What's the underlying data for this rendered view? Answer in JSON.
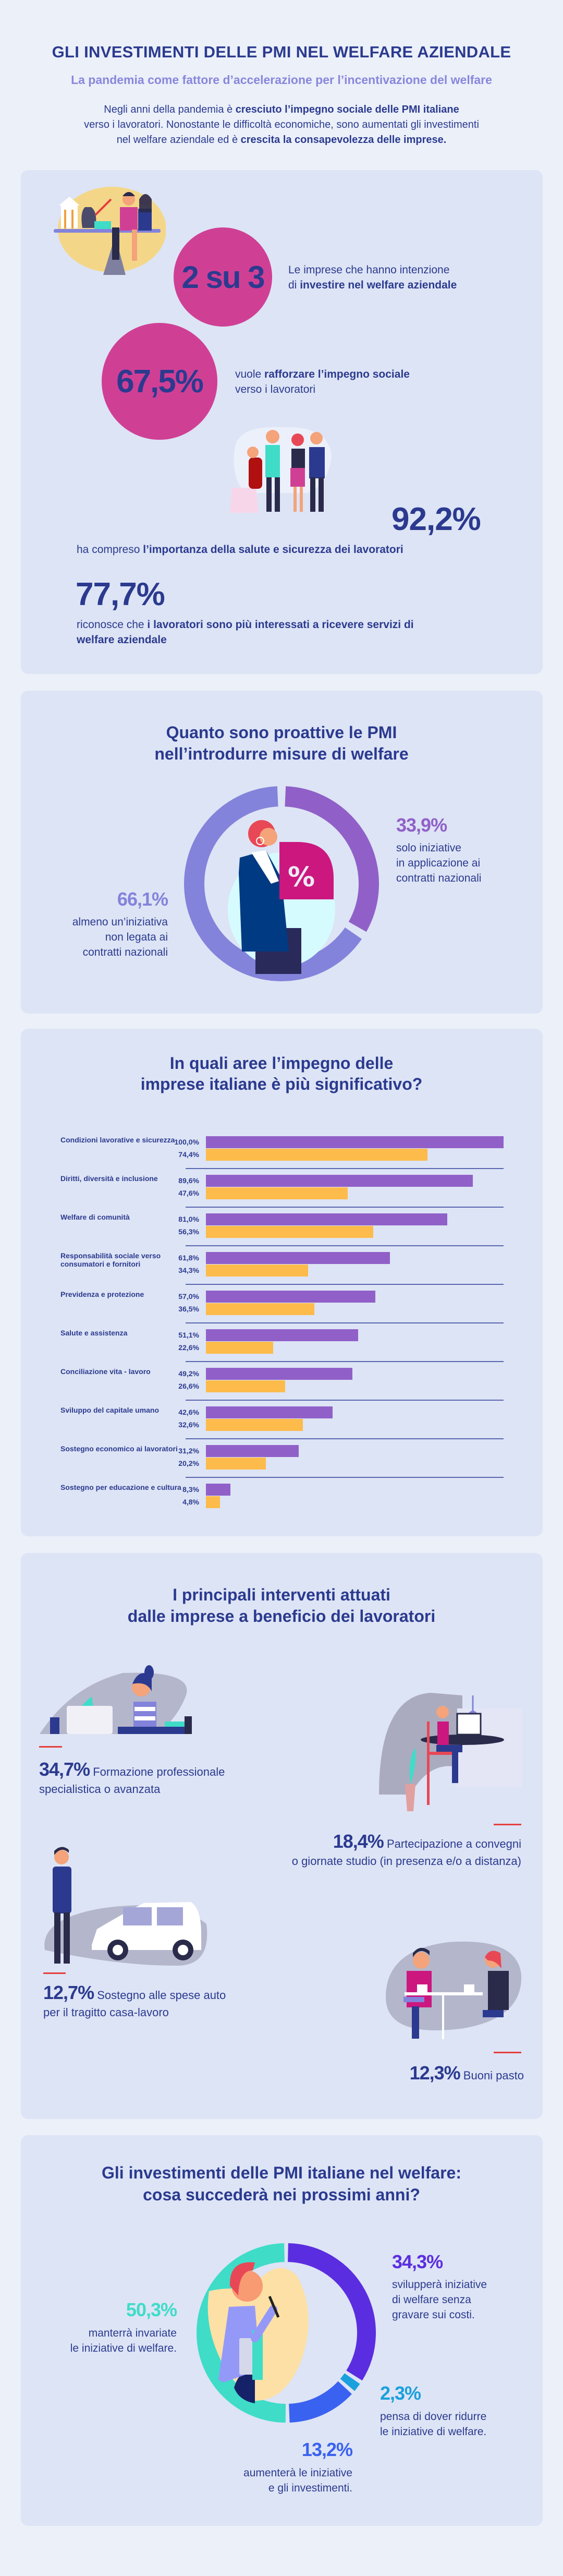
{
  "colors": {
    "background": "#ebf0f9",
    "card": "#dde4f5",
    "navy": "#2b3a8f",
    "magenta": "#cf4095",
    "subtitle": "#8a86dc",
    "accent_red": "#e53e3e"
  },
  "header": {
    "title": "GLI INVESTIMENTI DELLE PMI NEL WELFARE AZIENDALE",
    "subtitle": "La pandemia come fattore d’accelerazione per l’incentivazione del welfare",
    "intro": {
      "line1_regular": "Negli anni della pandemia è ",
      "line1_bold": "cresciuto l’impegno sociale delle PMI italiane",
      "line2": "verso i lavoratori. Nonostante le difficoltà economiche, sono aumentati gli investimenti",
      "line3_regular": "nel welfare aziendale ed è ",
      "line3_bold": "crescita la consapevolezza delle imprese."
    }
  },
  "stats": {
    "stat1": {
      "value": "2 su 3",
      "line1": "Le imprese che hanno intenzione",
      "prefix": "di ",
      "bold": "investire nel welfare aziendale"
    },
    "stat2": {
      "value": "67,5%",
      "prefix": "vuole ",
      "bold": "rafforzare l’impegno sociale",
      "line2": "verso i lavoratori"
    },
    "stat3": {
      "value": "92,2%",
      "prefix": "ha compreso ",
      "bold": "l’importanza della salute e sicurezza dei lavoratori"
    },
    "stat4": {
      "value": "77,7%",
      "prefix": "riconosce che ",
      "bold": "i lavoratori sono più interessati a ricevere servizi di welfare aziendale"
    }
  },
  "proactivity": {
    "title_line1": "Quanto sono proattive le PMI",
    "title_line2": "nell’introdurre misure di welfare",
    "right": {
      "value": "33,9%",
      "lines": [
        "solo iniziative",
        "in applicazione ai",
        "contratti nazionali"
      ]
    },
    "left": {
      "value": "66,1%",
      "lines": [
        "almeno un’iniziativa",
        "non legata ai",
        "contratti nazionali"
      ]
    },
    "center_icon": "percent-icon"
  },
  "areas": {
    "title_line1": "In quali aree l’impegno delle",
    "title_line2": "imprese italiane è più significativo?"
  },
  "interventions": {
    "title_line1": "I principali interventi attuati",
    "title_line2": "dalle imprese a beneficio dei lavoratori",
    "items": [
      {
        "value": "34,7%",
        "label": "Formazione professionale",
        "line2": "specialistica o avanzata"
      },
      {
        "value": "18,4%",
        "label": "Partecipazione a convegni",
        "line2": "o giornate studio (in presenza e/o a distanza)"
      },
      {
        "value": "12,7%",
        "label": "Sostegno alle spese auto",
        "line2": "per il tragitto casa-lavoro"
      },
      {
        "value": "12,3%",
        "label": "Buoni pasto",
        "line2": ""
      }
    ]
  },
  "future": {
    "title_line1": "Gli investimenti delle PMI italiane nel welfare:",
    "title_line2": "cosa succederà nei prossimi anni?",
    "items": [
      {
        "value": "34,3%",
        "lines": [
          "svilupperà iniziative",
          "di welfare senza",
          "gravare sui costi."
        ]
      },
      {
        "value": "2,3%",
        "lines": [
          "pensa di dover ridurre",
          "le iniziative di welfare."
        ]
      },
      {
        "value": "13,2%",
        "lines": [
          "aumenterà le iniziative",
          "e gli investimenti."
        ]
      },
      {
        "value": "50,3%",
        "lines": [
          "manterrà invariate",
          "le iniziative di welfare."
        ]
      }
    ]
  },
  "chart_data": [
    {
      "type": "pie",
      "variant": "donut",
      "values": [
        33.9,
        66.1
      ],
      "labels": [
        "33,9%",
        "66,1%"
      ],
      "colors": [
        "#9060c8",
        "#8383db"
      ],
      "start": "top",
      "direction": "clockwise"
    },
    {
      "type": "bar",
      "orientation": "horizontal",
      "categories": [
        "Condizioni lavorative e sicurezza",
        "Diritti, diversità e inclusione",
        "Welfare di comunità",
        "Responsabilità sociale verso consumatori e fornitori",
        "Previdenza e protezione",
        "Salute e assistenza",
        "Conciliazione vita - lavoro",
        "Sviluppo del capitale umano",
        "Sostegno economico ai lavoratori",
        "Sostegno per educazione e cultura"
      ],
      "series": [
        {
          "values": [
            100.0,
            89.6,
            81.0,
            61.8,
            57.0,
            51.1,
            49.2,
            42.6,
            31.2,
            8.3
          ],
          "labels": [
            "100,0%",
            "89,6%",
            "81,0%",
            "61,8%",
            "57,0%",
            "51,1%",
            "49,2%",
            "42,6%",
            "31,2%",
            "8,3%"
          ],
          "color": "#9060c8"
        },
        {
          "values": [
            74.4,
            47.6,
            56.3,
            34.3,
            36.5,
            22.6,
            26.6,
            32.6,
            20.2,
            4.8
          ],
          "labels": [
            "74,4%",
            "47,6%",
            "56,3%",
            "34,3%",
            "36,5%",
            "22,6%",
            "26,6%",
            "32,6%",
            "20,2%",
            "4,8%"
          ],
          "color": "#fcbb4b"
        }
      ],
      "xlim": [
        0,
        100
      ],
      "grid": false
    },
    {
      "type": "pie",
      "variant": "donut",
      "values": [
        34.3,
        2.3,
        13.2,
        50.3
      ],
      "labels": [
        "34,3%",
        "2,3%",
        "13,2%",
        "50,3%"
      ],
      "colors": [
        "#5b2de0",
        "#1aa0dc",
        "#3a62f0",
        "#3fdcc8"
      ],
      "start": "top",
      "direction": "clockwise"
    }
  ]
}
